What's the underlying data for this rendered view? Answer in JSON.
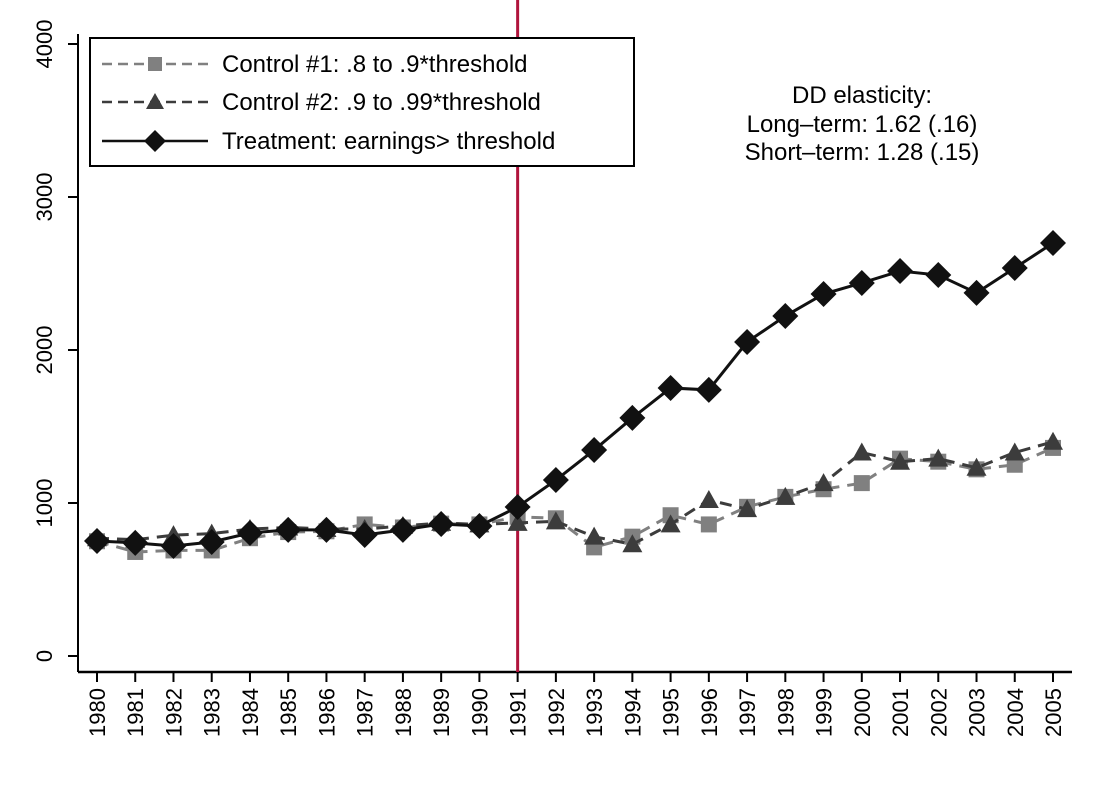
{
  "chart_data": {
    "type": "line",
    "title": "",
    "xlabel": "",
    "ylabel": "",
    "x": [
      1980,
      1981,
      1982,
      1983,
      1984,
      1985,
      1986,
      1987,
      1988,
      1989,
      1990,
      1991,
      1992,
      1993,
      1994,
      1995,
      1996,
      1997,
      1998,
      1999,
      2000,
      2001,
      2002,
      2003,
      2004,
      2005
    ],
    "xtick_labels": [
      "1980",
      "1981",
      "1982",
      "1983",
      "1984",
      "1985",
      "1986",
      "1987",
      "1988",
      "1989",
      "1990",
      "1991",
      "1992",
      "1993",
      "1994",
      "1995",
      "1996",
      "1997",
      "1998",
      "1999",
      "2000",
      "2001",
      "2002",
      "2003",
      "2004",
      "2005"
    ],
    "ylim": [
      0,
      4000
    ],
    "yticks": [
      0,
      1000,
      2000,
      3000,
      4000
    ],
    "ytick_labels": [
      "0",
      "1000",
      "2000",
      "3000",
      "4000"
    ],
    "grid": false,
    "legend_position": "top-left",
    "vertical_line": {
      "x": 1991,
      "color": "#b0143c"
    },
    "series": [
      {
        "name": "Control #1: .8 to .9*threshold",
        "marker": "square",
        "line_style": "dashed",
        "color": "#808080",
        "values": [
          750,
          680,
          690,
          690,
          770,
          810,
          815,
          860,
          840,
          865,
          860,
          910,
          900,
          710,
          780,
          920,
          860,
          975,
          1040,
          1090,
          1130,
          1290,
          1270,
          1220,
          1250,
          1360
        ]
      },
      {
        "name": "Control #2: .9 to .99*threshold",
        "marker": "triangle",
        "line_style": "dashed",
        "color": "#3c3c3c",
        "values": [
          770,
          760,
          790,
          800,
          830,
          840,
          830,
          830,
          850,
          870,
          860,
          870,
          880,
          780,
          730,
          860,
          1020,
          960,
          1040,
          1130,
          1330,
          1270,
          1290,
          1230,
          1330,
          1400
        ]
      },
      {
        "name": "Treatment: earnings> threshold",
        "marker": "diamond",
        "line_style": "solid",
        "color": "#111111",
        "values": [
          752,
          739,
          719,
          745,
          804,
          824,
          824,
          791,
          824,
          863,
          850,
          974,
          1150,
          1346,
          1556,
          1752,
          1739,
          2052,
          2222,
          2366,
          2438,
          2516,
          2490,
          2373,
          2536,
          2699
        ]
      }
    ],
    "annotations": [
      "DD elasticity:",
      "Long–term: 1.62 (.16)",
      "Short–term: 1.28 (.15)"
    ]
  }
}
